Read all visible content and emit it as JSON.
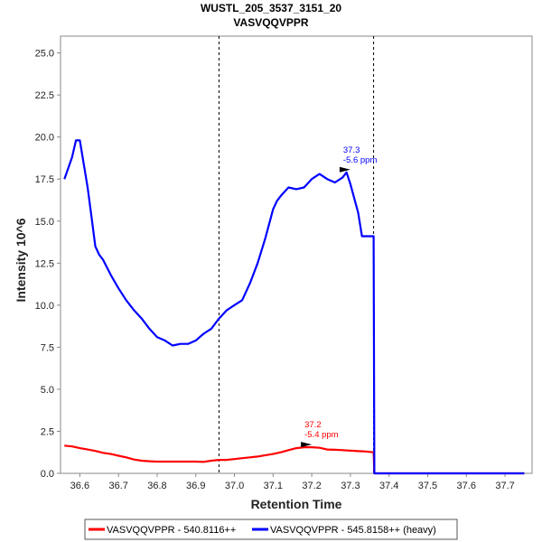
{
  "chart_data": {
    "type": "line",
    "title": "WUSTL_205_3537_3151_20",
    "subtitle": "VASVQQVPPR",
    "xlabel": "Retention Time",
    "ylabel": "Intensity 10^6",
    "xlim": [
      36.55,
      37.77
    ],
    "ylim": [
      0,
      26
    ],
    "x_ticks": [
      "36.6",
      "36.7",
      "36.8",
      "36.9",
      "37.0",
      "37.1",
      "37.2",
      "37.3",
      "37.4",
      "37.5",
      "37.6",
      "37.7"
    ],
    "y_ticks": [
      "0.0",
      "2.5",
      "5.0",
      "7.5",
      "10.0",
      "12.5",
      "15.0",
      "17.5",
      "20.0",
      "22.5",
      "25.0"
    ],
    "grid": false,
    "legend_position": "bottom",
    "boundaries": [
      36.96,
      37.36
    ],
    "series": [
      {
        "name": "VASVQQVPPR - 540.8116++",
        "color": "#ff0000",
        "x": [
          36.56,
          36.58,
          36.6,
          36.62,
          36.64,
          36.66,
          36.68,
          36.7,
          36.72,
          36.74,
          36.76,
          36.78,
          36.8,
          36.82,
          36.84,
          36.86,
          36.88,
          36.9,
          36.92,
          36.94,
          36.96,
          36.98,
          37.0,
          37.02,
          37.04,
          37.06,
          37.08,
          37.1,
          37.12,
          37.14,
          37.16,
          37.18,
          37.2,
          37.22,
          37.24,
          37.26,
          37.28,
          37.3,
          37.32,
          37.34,
          37.36,
          37.362,
          37.38,
          37.4,
          37.45,
          37.5,
          37.55,
          37.6,
          37.65,
          37.7,
          37.75
        ],
        "y": [
          1.65,
          1.6,
          1.5,
          1.42,
          1.33,
          1.22,
          1.15,
          1.05,
          0.95,
          0.82,
          0.75,
          0.72,
          0.7,
          0.7,
          0.7,
          0.7,
          0.7,
          0.7,
          0.68,
          0.75,
          0.8,
          0.8,
          0.85,
          0.9,
          0.95,
          1.0,
          1.08,
          1.15,
          1.25,
          1.38,
          1.5,
          1.55,
          1.55,
          1.52,
          1.42,
          1.4,
          1.38,
          1.35,
          1.32,
          1.3,
          1.25,
          0.0,
          0.0,
          0.0,
          0.0,
          0.0,
          0.0,
          0.0,
          0.0,
          0.0,
          0.0
        ]
      },
      {
        "name": "VASVQQVPPR - 545.8158++ (heavy)",
        "color": "#0000ff",
        "x": [
          36.56,
          36.58,
          36.59,
          36.6,
          36.62,
          36.63,
          36.64,
          36.65,
          36.66,
          36.68,
          36.7,
          36.72,
          36.74,
          36.76,
          36.78,
          36.8,
          36.82,
          36.84,
          36.86,
          36.88,
          36.9,
          36.92,
          36.94,
          36.96,
          36.98,
          37.0,
          37.02,
          37.04,
          37.06,
          37.08,
          37.1,
          37.11,
          37.12,
          37.14,
          37.16,
          37.18,
          37.2,
          37.22,
          37.24,
          37.26,
          37.28,
          37.29,
          37.3,
          37.32,
          37.33,
          37.35,
          37.36,
          37.362,
          37.38,
          37.4,
          37.45,
          37.5,
          37.55,
          37.6,
          37.65,
          37.7,
          37.75
        ],
        "y": [
          17.5,
          18.8,
          19.8,
          19.8,
          17.0,
          15.3,
          13.5,
          13.0,
          12.7,
          11.8,
          11.0,
          10.3,
          9.7,
          9.2,
          8.6,
          8.1,
          7.9,
          7.6,
          7.7,
          7.7,
          7.9,
          8.3,
          8.6,
          9.2,
          9.7,
          10.0,
          10.3,
          11.3,
          12.5,
          14.0,
          15.7,
          16.2,
          16.5,
          17.0,
          16.9,
          17.0,
          17.5,
          17.8,
          17.5,
          17.3,
          17.6,
          17.9,
          17.2,
          15.5,
          14.1,
          14.1,
          14.1,
          0.0,
          0.0,
          0.0,
          0.0,
          0.0,
          0.0,
          0.0,
          0.0,
          0.0,
          0.0
        ]
      }
    ],
    "annotations": [
      {
        "series": 0,
        "x": 37.2,
        "y": 1.55,
        "line1": "37.2",
        "line2": "-5.4 ppm",
        "color": "#ff0000"
      },
      {
        "series": 1,
        "x": 37.3,
        "y": 17.9,
        "line1": "37.3",
        "line2": "-5.6 ppm",
        "color": "#0000ff"
      }
    ]
  }
}
